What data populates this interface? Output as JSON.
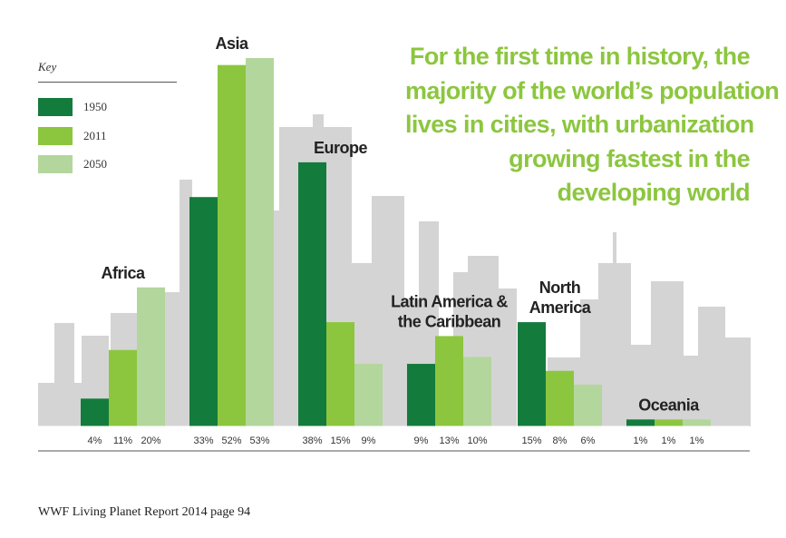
{
  "key": {
    "title": "Key",
    "items": [
      {
        "label": "1950",
        "color": "#137b3c"
      },
      {
        "label": "2011",
        "color": "#8cc63f"
      },
      {
        "label": "2050",
        "color": "#b3d69c"
      }
    ]
  },
  "headline": {
    "lines": [
      "For the first time in history, the",
      "majority of the world’s population",
      "lives in cities, with urbanization",
      "growing fastest in the",
      "developing world"
    ],
    "color": "#8cc63f"
  },
  "footer": "WWF Living Planet Report 2014 page 94",
  "chart_data": {
    "type": "bar",
    "title": "",
    "xlabel": "",
    "ylabel": "",
    "ylim": [
      0,
      58
    ],
    "categories": [
      [
        "Africa"
      ],
      [
        "Asia"
      ],
      [
        "Europe"
      ],
      [
        "Latin America &",
        "the Caribbean"
      ],
      [
        "North",
        "America"
      ],
      [
        "Oceania"
      ]
    ],
    "series": [
      {
        "name": "1950",
        "color": "#137b3c",
        "values": [
          4,
          33,
          38,
          9,
          15,
          1
        ],
        "labels": [
          "4%",
          "33%",
          "38%",
          "9%",
          "15%",
          "1%"
        ]
      },
      {
        "name": "2011",
        "color": "#8cc63f",
        "values": [
          11,
          52,
          15,
          13,
          8,
          1
        ],
        "labels": [
          "11%",
          "52%",
          "15%",
          "13%",
          "8%",
          "1%"
        ]
      },
      {
        "name": "2050",
        "color": "#b3d69c",
        "values": [
          20,
          53,
          9,
          10,
          6,
          1
        ],
        "labels": [
          "20%",
          "53%",
          "9%",
          "10%",
          "6%",
          "1%"
        ]
      }
    ]
  }
}
